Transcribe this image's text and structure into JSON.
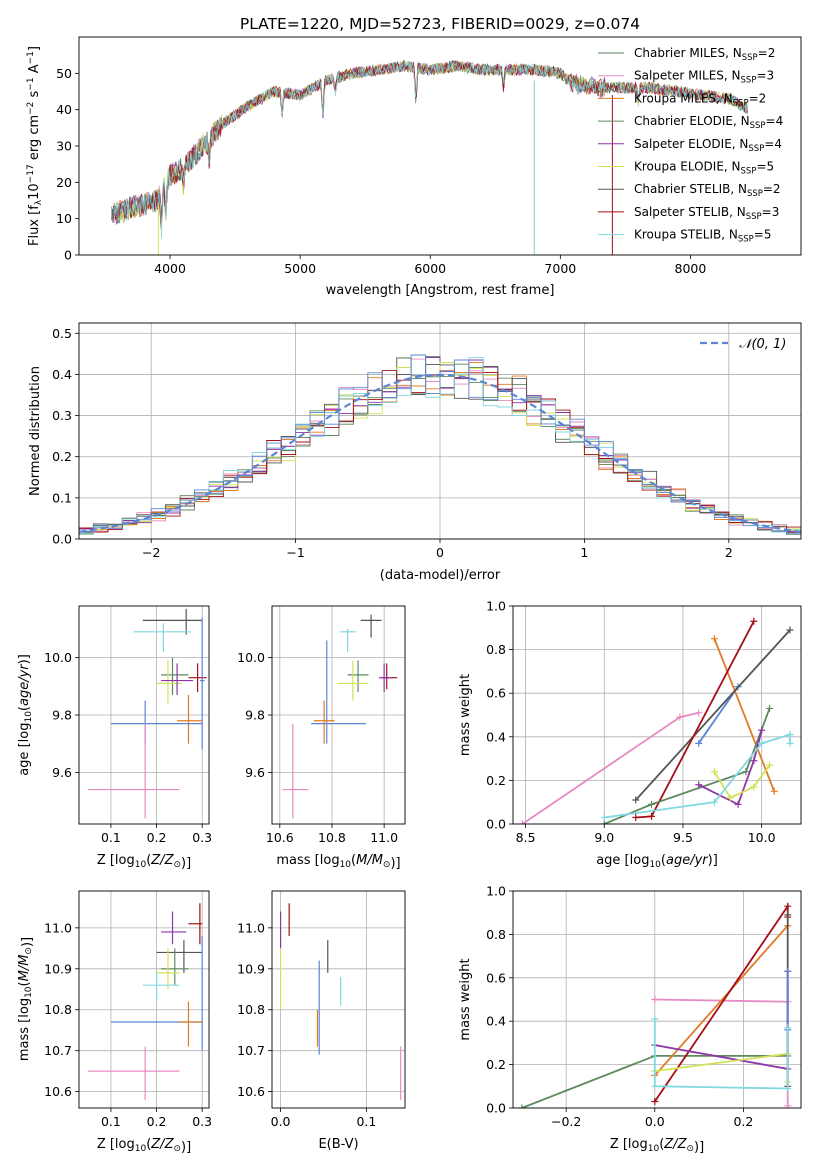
{
  "title": "PLATE=1220, MJD=52723, FIBERID=0029, z=0.074",
  "colors": {
    "chabrier_miles": "#5a7d5a",
    "salpeter_miles": "#e78ac3",
    "kroupa_miles": "#e07b24",
    "chabrier_elodie": "#5f8a5f",
    "salpeter_elodie": "#8e35a8",
    "kroupa_elodie": "#d4e157",
    "chabrier_stelib": "#555555",
    "salpeter_stelib": "#a50f15",
    "kroupa_stelib": "#80d8e0",
    "blue_miles": "#5b86d6",
    "normal_curve": "#5b86d6"
  },
  "chart_data": [
    {
      "id": "spectrum",
      "type": "line",
      "xlabel": "wavelength [Angstrom, rest frame]",
      "ylabel": "Flux [f_λ10^-17 erg cm^-2 s^-1 A^-1]",
      "xlim": [
        3300,
        8850
      ],
      "ylim": [
        0,
        60
      ],
      "xticks": [
        4000,
        5000,
        6000,
        7000,
        8000
      ],
      "yticks": [
        0,
        10,
        20,
        30,
        40,
        50
      ],
      "grid": false,
      "legend_position": "top-right",
      "legend": [
        {
          "name": "Chabrier MILES, N_SSP=2",
          "color": "#5a7d5a"
        },
        {
          "name": "Salpeter MILES, N_SSP=3",
          "color": "#e78ac3"
        },
        {
          "name": "Kroupa MILES, N_SSP=2",
          "color": "#e07b24"
        },
        {
          "name": "Chabrier ELODIE, N_SSP=4",
          "color": "#5f8a5f"
        },
        {
          "name": "Salpeter ELODIE, N_SSP=4",
          "color": "#8e35a8"
        },
        {
          "name": "Kroupa ELODIE, N_SSP=5",
          "color": "#d4e157"
        },
        {
          "name": "Chabrier STELIB, N_SSP=2",
          "color": "#555555"
        },
        {
          "name": "Salpeter STELIB, N_SSP=3",
          "color": "#a50f15"
        },
        {
          "name": "Kroupa STELIB, N_SSP=5",
          "color": "#80d8e0"
        }
      ],
      "continuum": {
        "x": [
          3550,
          3700,
          3900,
          4000,
          4100,
          4300,
          4400,
          4600,
          4800,
          5000,
          5200,
          5400,
          5600,
          5800,
          6000,
          6200,
          6400,
          6600,
          6800,
          7000,
          7100,
          7300,
          7500,
          7700,
          7900,
          8100,
          8300,
          8450
        ],
        "y": [
          11,
          13,
          15,
          22,
          24,
          32,
          36,
          41,
          45,
          44,
          48,
          50,
          51,
          52,
          51,
          52,
          51,
          51,
          51,
          50,
          47,
          46,
          46,
          46,
          45,
          44,
          43,
          40
        ]
      },
      "special_lines": [
        {
          "x": 3910,
          "from": 0,
          "to": 14,
          "color": "#d4e157"
        },
        {
          "x": 6800,
          "from": 0,
          "to": 48,
          "color": "#d4e157"
        },
        {
          "x": 6800,
          "from": 0,
          "to": 48,
          "color": "#80d8e0"
        },
        {
          "x": 7400,
          "from": 0,
          "to": 44,
          "color": "#a50f15"
        }
      ]
    },
    {
      "id": "residual_hist",
      "type": "step-histogram",
      "xlabel": "(data-model)/error",
      "ylabel": "Normed distribution",
      "xlim": [
        -2.5,
        2.5
      ],
      "ylim": [
        0,
        0.525
      ],
      "xticks": [
        -2,
        -1,
        0,
        1,
        2
      ],
      "yticks": [
        0.0,
        0.1,
        0.2,
        0.3,
        0.4,
        0.5
      ],
      "grid": true,
      "legend_position": "top-right",
      "legend": [
        {
          "name": "𝒩(0, 1)",
          "color": "#5b86d6",
          "style": "dashed"
        }
      ],
      "bin_width": 0.1
    },
    {
      "id": "age_vs_Z",
      "type": "errorbar",
      "xlabel": "Z [log10(Z/Z⊙)]",
      "ylabel": "age [log10(age/yr)]",
      "xlim": [
        0.03,
        0.315
      ],
      "ylim": [
        9.42,
        10.18
      ],
      "xticks": [
        0.1,
        0.2,
        0.3
      ],
      "yticks": [
        9.6,
        9.8,
        10.0
      ],
      "grid": true,
      "points": [
        {
          "x": 0.265,
          "y": 10.13,
          "xerr": [
            0.17,
            0.3
          ],
          "yerr": [
            10.08,
            10.17
          ],
          "color": "#555555"
        },
        {
          "x": 0.215,
          "y": 10.09,
          "xerr": [
            0.15,
            0.275
          ],
          "yerr": [
            10.02,
            10.12
          ],
          "color": "#80d8e0"
        },
        {
          "x": 0.235,
          "y": 9.94,
          "xerr": [
            0.21,
            0.27
          ],
          "yerr": [
            9.87,
            10.0
          ],
          "color": "#5f8a5f"
        },
        {
          "x": 0.225,
          "y": 9.91,
          "xerr": [
            0.2,
            0.255
          ],
          "yerr": [
            9.84,
            9.99
          ],
          "color": "#d4e157"
        },
        {
          "x": 0.245,
          "y": 9.92,
          "xerr": [
            0.21,
            0.28
          ],
          "yerr": [
            9.87,
            9.98
          ],
          "color": "#8e35a8"
        },
        {
          "x": 0.29,
          "y": 9.93,
          "xerr": [
            0.27,
            0.31
          ],
          "yerr": [
            9.88,
            9.98
          ],
          "color": "#a50f15"
        },
        {
          "x": 0.3,
          "y": 9.92,
          "xerr": [
            0.295,
            0.305
          ],
          "yerr": [
            9.68,
            10.14
          ],
          "color": "#5b86d6"
        },
        {
          "x": 0.27,
          "y": 9.78,
          "xerr": [
            0.245,
            0.3
          ],
          "yerr": [
            9.7,
            9.87
          ],
          "color": "#e07b24"
        },
        {
          "x": 0.175,
          "y": 9.77,
          "xerr": [
            0.1,
            0.3
          ],
          "yerr": [
            9.7,
            9.85
          ],
          "color": "#5b86d6"
        },
        {
          "x": 0.175,
          "y": 9.54,
          "xerr": [
            0.05,
            0.25
          ],
          "yerr": [
            9.44,
            9.77
          ],
          "color": "#e78ac3"
        }
      ]
    },
    {
      "id": "age_vs_mass",
      "type": "errorbar",
      "xlabel": "mass [log10(M/M⊙)]",
      "xlim": [
        10.57,
        11.08
      ],
      "ylim": [
        9.42,
        10.18
      ],
      "xticks": [
        10.6,
        10.8,
        11.0
      ],
      "yticks": [
        9.6,
        9.8,
        10.0
      ],
      "grid": true,
      "points": [
        {
          "x": 10.95,
          "y": 10.13,
          "xerr": [
            10.91,
            10.99
          ],
          "yerr": [
            10.07,
            10.15
          ],
          "color": "#555555"
        },
        {
          "x": 10.86,
          "y": 10.09,
          "xerr": [
            10.83,
            10.89
          ],
          "yerr": [
            10.02,
            10.1
          ],
          "color": "#80d8e0"
        },
        {
          "x": 10.9,
          "y": 9.94,
          "xerr": [
            10.86,
            10.94
          ],
          "yerr": [
            9.88,
            9.99
          ],
          "color": "#5f8a5f"
        },
        {
          "x": 10.88,
          "y": 9.91,
          "xerr": [
            10.82,
            10.94
          ],
          "yerr": [
            9.85,
            9.99
          ],
          "color": "#d4e157"
        },
        {
          "x": 11.01,
          "y": 9.93,
          "xerr": [
            10.99,
            11.05
          ],
          "yerr": [
            9.89,
            9.98
          ],
          "color": "#a50f15"
        },
        {
          "x": 11.0,
          "y": 9.93,
          "xerr": [
            10.98,
            11.03
          ],
          "yerr": [
            9.88,
            9.98
          ],
          "color": "#8e35a8"
        },
        {
          "x": 10.78,
          "y": 9.77,
          "xerr": [
            10.72,
            10.93
          ],
          "yerr": [
            9.7,
            10.06
          ],
          "color": "#5b86d6"
        },
        {
          "x": 10.77,
          "y": 9.78,
          "xerr": [
            10.73,
            10.81
          ],
          "yerr": [
            9.7,
            9.85
          ],
          "color": "#e07b24"
        },
        {
          "x": 10.65,
          "y": 9.54,
          "xerr": [
            10.61,
            10.71
          ],
          "yerr": [
            9.44,
            9.77
          ],
          "color": "#e78ac3"
        }
      ]
    },
    {
      "id": "massweight_vs_age",
      "type": "line",
      "xlabel": "age [log10(age/yr)]",
      "ylabel": "mass weight",
      "xlim": [
        8.42,
        10.25
      ],
      "ylim": [
        0,
        1.0
      ],
      "xticks": [
        8.5,
        9.0,
        9.5,
        10.0
      ],
      "yticks": [
        0.0,
        0.2,
        0.4,
        0.6,
        0.8,
        1.0
      ],
      "grid": true,
      "series": [
        {
          "color": "#e78ac3",
          "x": [
            8.48,
            9.48,
            9.6
          ],
          "y": [
            0.0,
            0.49,
            0.51
          ]
        },
        {
          "color": "#5b86d6",
          "x": [
            9.6,
            9.85
          ],
          "y": [
            0.37,
            0.63
          ]
        },
        {
          "color": "#e07b24",
          "x": [
            9.7,
            10.08
          ],
          "y": [
            0.85,
            0.15
          ]
        },
        {
          "color": "#555555",
          "x": [
            9.2,
            10.18
          ],
          "y": [
            0.11,
            0.89
          ]
        },
        {
          "color": "#a50f15",
          "x": [
            9.2,
            9.3,
            9.95
          ],
          "y": [
            0.03,
            0.035,
            0.93
          ]
        },
        {
          "color": "#5f8a5f",
          "x": [
            9.0,
            9.3,
            9.9,
            10.05
          ],
          "y": [
            0.0,
            0.09,
            0.24,
            0.53
          ]
        },
        {
          "color": "#8e35a8",
          "x": [
            9.6,
            9.85,
            9.95,
            10.0
          ],
          "y": [
            0.18,
            0.09,
            0.29,
            0.43
          ]
        },
        {
          "color": "#d4e157",
          "x": [
            9.7,
            9.8,
            9.95,
            10.05
          ],
          "y": [
            0.24,
            0.12,
            0.17,
            0.27
          ]
        },
        {
          "color": "#80d8e0",
          "x": [
            9.0,
            9.7,
            10.0,
            10.18,
            10.18
          ],
          "y": [
            0.03,
            0.1,
            0.37,
            0.41,
            0.37
          ]
        }
      ]
    },
    {
      "id": "mass_vs_Z",
      "type": "errorbar",
      "xlabel": "Z [log10(Z/Z⊙)]",
      "ylabel": "mass [log10(M/M⊙)]",
      "xlim": [
        0.03,
        0.315
      ],
      "ylim": [
        10.56,
        11.09
      ],
      "xticks": [
        0.1,
        0.2,
        0.3
      ],
      "yticks": [
        10.6,
        10.7,
        10.8,
        10.9,
        11.0
      ],
      "grid": true,
      "points": [
        {
          "x": 0.295,
          "y": 11.01,
          "xerr": [
            0.27,
            0.3
          ],
          "yerr": [
            10.96,
            11.06
          ],
          "color": "#a50f15"
        },
        {
          "x": 0.235,
          "y": 10.99,
          "xerr": [
            0.21,
            0.265
          ],
          "yerr": [
            10.96,
            11.04
          ],
          "color": "#8e35a8"
        },
        {
          "x": 0.26,
          "y": 10.94,
          "xerr": [
            0.2,
            0.3
          ],
          "yerr": [
            10.89,
            10.97
          ],
          "color": "#555555"
        },
        {
          "x": 0.24,
          "y": 10.9,
          "xerr": [
            0.21,
            0.27
          ],
          "yerr": [
            10.86,
            10.95
          ],
          "color": "#5f8a5f"
        },
        {
          "x": 0.225,
          "y": 10.89,
          "xerr": [
            0.2,
            0.25
          ],
          "yerr": [
            10.85,
            10.95
          ],
          "color": "#d4e157"
        },
        {
          "x": 0.2,
          "y": 10.86,
          "xerr": [
            0.17,
            0.25
          ],
          "yerr": [
            10.82,
            10.89
          ],
          "color": "#80d8e0"
        },
        {
          "x": 0.3,
          "y": 10.77,
          "xerr": [
            0.1,
            0.3
          ],
          "yerr": [
            10.7,
            10.98
          ],
          "color": "#5b86d6"
        },
        {
          "x": 0.27,
          "y": 10.77,
          "xerr": [
            0.25,
            0.3
          ],
          "yerr": [
            10.71,
            10.82
          ],
          "color": "#e07b24"
        },
        {
          "x": 0.175,
          "y": 10.65,
          "xerr": [
            0.05,
            0.25
          ],
          "yerr": [
            10.58,
            10.71
          ],
          "color": "#e78ac3"
        }
      ]
    },
    {
      "id": "mass_vs_ebv",
      "type": "errorbar",
      "xlabel": "E(B-V)",
      "xlim": [
        -0.01,
        0.145
      ],
      "ylim": [
        10.56,
        11.09
      ],
      "xticks": [
        0.0,
        0.1
      ],
      "yticks": [
        10.6,
        10.7,
        10.8,
        10.9,
        11.0
      ],
      "grid": true,
      "points": [
        {
          "x": 0.01,
          "y": 11.02,
          "xerr": [
            0.01,
            0.01
          ],
          "yerr": [
            10.98,
            11.06
          ],
          "color": "#a50f15"
        },
        {
          "x": 0.0,
          "y": 10.99,
          "xerr": [
            0.0,
            0.0
          ],
          "yerr": [
            10.95,
            11.04
          ],
          "color": "#8e35a8"
        },
        {
          "x": 0.0,
          "y": 10.88,
          "xerr": [
            0.0,
            0.0
          ],
          "yerr": [
            10.8,
            10.95
          ],
          "color": "#d4e157"
        },
        {
          "x": 0.055,
          "y": 10.93,
          "xerr": [
            0.055,
            0.055
          ],
          "yerr": [
            10.89,
            10.97
          ],
          "color": "#555555"
        },
        {
          "x": 0.045,
          "y": 10.85,
          "xerr": [
            0.045,
            0.045
          ],
          "yerr": [
            10.69,
            10.92
          ],
          "color": "#5b86d6"
        },
        {
          "x": 0.043,
          "y": 10.76,
          "xerr": [
            0.043,
            0.043
          ],
          "yerr": [
            10.71,
            10.8
          ],
          "color": "#e07b24"
        },
        {
          "x": 0.07,
          "y": 10.85,
          "xerr": [
            0.07,
            0.07
          ],
          "yerr": [
            10.81,
            10.88
          ],
          "color": "#80d8e0"
        },
        {
          "x": 0.14,
          "y": 10.65,
          "xerr": [
            0.14,
            0.14
          ],
          "yerr": [
            10.58,
            10.71
          ],
          "color": "#e78ac3"
        }
      ]
    },
    {
      "id": "massweight_vs_Z",
      "type": "line",
      "xlabel": "Z [log10(Z/Z⊙)]",
      "ylabel": "mass weight",
      "xlim": [
        -0.32,
        0.33
      ],
      "ylim": [
        0,
        1.0
      ],
      "xticks": [
        -0.2,
        0.0,
        0.2
      ],
      "yticks": [
        0.0,
        0.2,
        0.4,
        0.6,
        0.8,
        1.0
      ],
      "grid": true,
      "series": [
        {
          "color": "#5f8a5f",
          "x": [
            -0.3,
            0.0,
            0.3
          ],
          "y": [
            0.0,
            0.24,
            0.24
          ]
        },
        {
          "color": "#e78ac3",
          "x": [
            0.0,
            0.3,
            0.3
          ],
          "y": [
            0.5,
            0.49,
            0.01
          ]
        },
        {
          "color": "#e07b24",
          "x": [
            0.0,
            0.3
          ],
          "y": [
            0.15,
            0.84
          ]
        },
        {
          "color": "#a50f15",
          "x": [
            0.0,
            0.3,
            0.3
          ],
          "y": [
            0.03,
            0.93,
            0.88
          ]
        },
        {
          "color": "#555555",
          "x": [
            0.3,
            0.3
          ],
          "y": [
            0.1,
            0.89
          ]
        },
        {
          "color": "#8e35a8",
          "x": [
            0.0,
            0.3,
            0.3
          ],
          "y": [
            0.29,
            0.18,
            0.63
          ]
        },
        {
          "color": "#d4e157",
          "x": [
            0.0,
            0.3,
            0.3
          ],
          "y": [
            0.17,
            0.25,
            0.12
          ]
        },
        {
          "color": "#5b86d6",
          "x": [
            0.3,
            0.3
          ],
          "y": [
            0.36,
            0.63
          ]
        },
        {
          "color": "#80d8e0",
          "x": [
            0.0,
            0.0,
            0.3,
            0.3
          ],
          "y": [
            0.41,
            0.1,
            0.09,
            0.37
          ]
        }
      ]
    }
  ]
}
